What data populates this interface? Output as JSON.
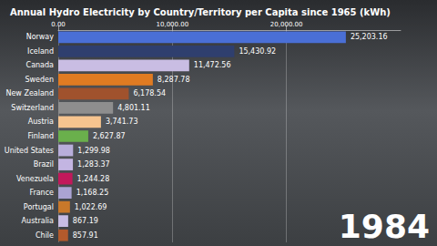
{
  "chart_data": {
    "type": "bar",
    "title": "Annual Hydro Electricity by Country/Territory per Capita since 1965 (kWh)",
    "orientation": "horizontal",
    "categories": [
      "Norway",
      "Iceland",
      "Canada",
      "Sweden",
      "New Zealand",
      "Switzerland",
      "Austria",
      "Finland",
      "United States",
      "Brazil",
      "Venezuela",
      "France",
      "Portugal",
      "Australia",
      "Chile"
    ],
    "values": [
      25203.16,
      15430.92,
      11472.56,
      8287.78,
      6178.54,
      4801.11,
      3741.73,
      2627.87,
      1299.98,
      1283.37,
      1244.28,
      1168.25,
      1022.69,
      867.19,
      857.91
    ],
    "value_labels": [
      "25,203.16",
      "15,430.92",
      "11,472.56",
      "8,287.78",
      "6,178.54",
      "4,801.11",
      "3,741.73",
      "2,627.87",
      "1,299.98",
      "1,283.37",
      "1,244.28",
      "1,168.25",
      "1,022.69",
      "867.19",
      "857.91"
    ],
    "colors": [
      "#4a6fd6",
      "#2f3f6e",
      "#c9bde3",
      "#e07b22",
      "#a0522d",
      "#8e8e8e",
      "#f6c48f",
      "#6ab04c",
      "#b8aedb",
      "#c3b5e2",
      "#c2185b",
      "#aaa3d3",
      "#c8782a",
      "#c7bce3",
      "#b35a2c"
    ],
    "xlim": [
      0,
      30000
    ],
    "xticks": [
      {
        "value": 0,
        "label": "0.00"
      },
      {
        "value": 10000,
        "label": "10,000.00"
      },
      {
        "value": 20000,
        "label": "20,000.00"
      }
    ],
    "grid": true,
    "data_labels": true,
    "annotation": "1984"
  }
}
